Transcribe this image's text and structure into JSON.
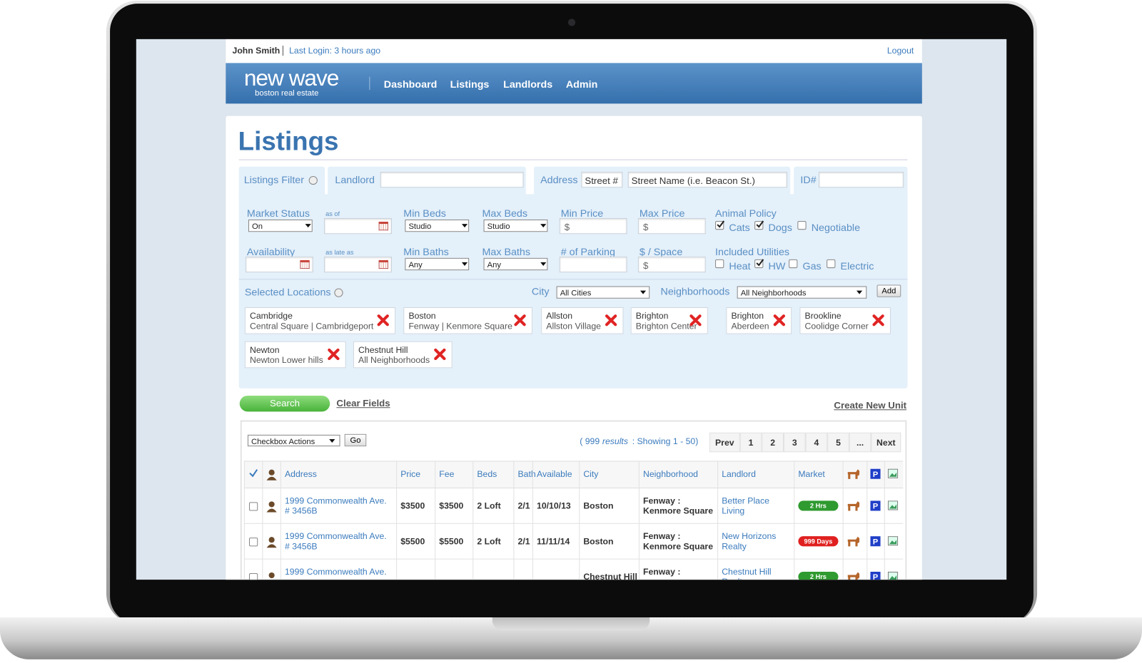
{
  "user": {
    "name": "John Smith",
    "last_login": "Last Login: 3 hours ago",
    "logout": "Logout"
  },
  "logo": {
    "name": "new wave",
    "tagline": "boston real estate"
  },
  "nav": [
    "Dashboard",
    "Listings",
    "Landlords",
    "Admin"
  ],
  "title": "Listings",
  "filter": {
    "tab": "Listings Filter",
    "landlord": "Landlord",
    "address": "Address",
    "street_no": "Street #",
    "street_name": "Street Name (i.e. Beacon St.)",
    "id": "ID#",
    "fields": [
      {
        "label": "Market Status",
        "value": "On"
      },
      {
        "label": "as of"
      },
      {
        "label": "Min Beds",
        "value": "Studio"
      },
      {
        "label": "Max Beds",
        "value": "Studio"
      },
      {
        "label": "Min Price",
        "value": "$"
      },
      {
        "label": "Max Price",
        "value": "$"
      },
      {
        "label": "Availability"
      },
      {
        "label": "as late as"
      },
      {
        "label": "Min Baths",
        "value": "Any"
      },
      {
        "label": "Max Baths",
        "value": "Any"
      },
      {
        "label": "# of Parking"
      },
      {
        "label": "$ / Space",
        "value": "$"
      }
    ],
    "animal_policy": {
      "label": "Animal Policy",
      "options": [
        "Cats",
        "Dogs",
        "Negotiable"
      ],
      "checked": [
        true,
        true,
        false
      ]
    },
    "utilities": {
      "label": "Included Utilities",
      "options": [
        "Heat",
        "HW",
        "Gas",
        "Electric"
      ],
      "checked": [
        false,
        true,
        false,
        false
      ]
    }
  },
  "locations": {
    "label": "Selected Locations",
    "city_label": "City",
    "city_value": "All Cities",
    "neighborhoods_label": "Neighborhoods",
    "neighborhoods_value": "All Neighborhoods",
    "add": "Add",
    "chips": [
      {
        "city": "Cambridge",
        "area": "Central Square | Cambridgeport"
      },
      {
        "city": "Boston",
        "area": "Fenway | Kenmore Square"
      },
      {
        "city": "Allston",
        "area": "Allston Village"
      },
      {
        "city": "Brighton",
        "area": "Brighton Center"
      },
      {
        "city": "Brighton",
        "area": "Aberdeen"
      },
      {
        "city": "Brookline",
        "area": "Coolidge Corner"
      },
      {
        "city": "Newton",
        "area": "Newton Lower hills"
      },
      {
        "city": "Chestnut Hill",
        "area": "All Neighborhoods"
      }
    ]
  },
  "actions": {
    "search": "Search",
    "clear": "Clear Fields",
    "create": "Create New Unit"
  },
  "results": {
    "bulk": "Checkbox Actions",
    "go": "Go",
    "summary_open": "( 999",
    "summary_word": "results",
    "summary_rest": ": Showing 1 - 50)",
    "pager": [
      "Prev",
      "1",
      "2",
      "3",
      "4",
      "5",
      "...",
      "Next"
    ]
  },
  "table": {
    "columns": [
      "Address",
      "Price",
      "Fee",
      "Beds",
      "Bath",
      "Available",
      "City",
      "Neighborhood",
      "Landlord",
      "Market"
    ],
    "rows": [
      {
        "address": "1999 Commonwealth Ave. # 3456B",
        "price": "$3500",
        "fee": "$3500",
        "beds": "2 Loft",
        "bath": "2/1",
        "available": "10/10/13",
        "city": "Boston",
        "neighborhood": "Fenway : Kenmore Square",
        "landlord": "Better Place Living",
        "market": "2 Hrs",
        "market_color": "#2f9a2f"
      },
      {
        "address": "1999 Commonwealth Ave. # 3456B",
        "price": "$5500",
        "fee": "$5500",
        "beds": "2 Loft",
        "bath": "2/1",
        "available": "11/11/14",
        "city": "Boston",
        "neighborhood": "Fenway : Kenmore Square",
        "landlord": "New Horizons Realty",
        "market": "999 Days",
        "market_color": "#e02020"
      },
      {
        "address": "1999 Commonwealth Ave.",
        "city": "Chestnut Hill",
        "neighborhood": "Fenway :",
        "landlord": "Chestnut Hill Realty",
        "market": "2 Hrs",
        "market_color": "#2f9a2f"
      }
    ]
  }
}
